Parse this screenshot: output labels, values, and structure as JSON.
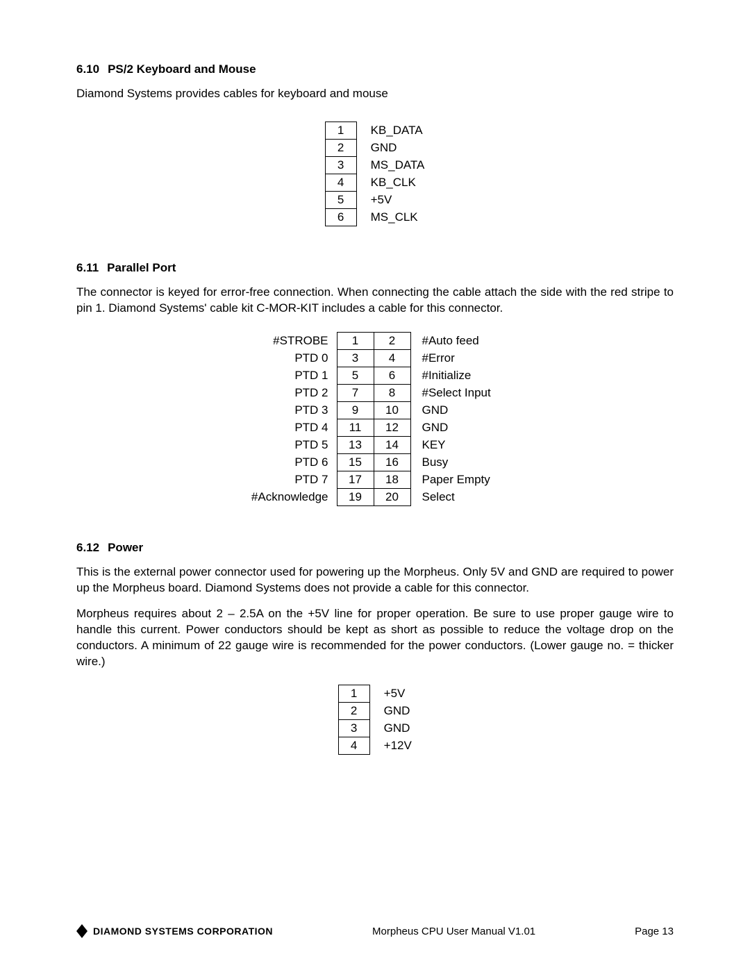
{
  "section1": {
    "number": "6.10",
    "title": "PS/2 Keyboard and Mouse",
    "text": "Diamond Systems provides cables for keyboard and mouse",
    "pins": [
      {
        "n": "1",
        "label": "KB_DATA"
      },
      {
        "n": "2",
        "label": "GND"
      },
      {
        "n": "3",
        "label": "MS_DATA"
      },
      {
        "n": "4",
        "label": "KB_CLK"
      },
      {
        "n": "5",
        "label": "+5V"
      },
      {
        "n": "6",
        "label": "MS_CLK"
      }
    ]
  },
  "section2": {
    "number": "6.11",
    "title": "Parallel Port",
    "text": "The connector is keyed for error-free connection. When connecting the cable attach the side with the red stripe to pin 1. Diamond Systems' cable kit C-MOR-KIT includes a cable for this connector.",
    "rows": [
      {
        "left": "#STROBE",
        "a": "1",
        "b": "2",
        "right": "#Auto feed"
      },
      {
        "left": "PTD 0",
        "a": "3",
        "b": "4",
        "right": "#Error"
      },
      {
        "left": "PTD 1",
        "a": "5",
        "b": "6",
        "right": "#Initialize"
      },
      {
        "left": "PTD 2",
        "a": "7",
        "b": "8",
        "right": "#Select Input"
      },
      {
        "left": "PTD 3",
        "a": "9",
        "b": "10",
        "right": "GND"
      },
      {
        "left": "PTD 4",
        "a": "11",
        "b": "12",
        "right": "GND"
      },
      {
        "left": "PTD 5",
        "a": "13",
        "b": "14",
        "right": "KEY"
      },
      {
        "left": "PTD 6",
        "a": "15",
        "b": "16",
        "right": "Busy"
      },
      {
        "left": "PTD 7",
        "a": "17",
        "b": "18",
        "right": "Paper Empty"
      },
      {
        "left": "#Acknowledge",
        "a": "19",
        "b": "20",
        "right": "Select"
      }
    ]
  },
  "section3": {
    "number": "6.12",
    "title": "Power",
    "text1": "This is the external power connector used for powering up the Morpheus. Only 5V and GND are required to power up the Morpheus board. Diamond Systems does not provide a cable for this connector.",
    "text2": "Morpheus requires about 2 – 2.5A on the +5V line for proper operation. Be sure to use proper gauge wire to handle this current. Power conductors should be kept as short as possible to reduce the voltage drop on the conductors. A minimum of 22 gauge wire is recommended for the power conductors. (Lower gauge no. = thicker wire.)",
    "pins": [
      {
        "n": "1",
        "label": "+5V"
      },
      {
        "n": "2",
        "label": "GND"
      },
      {
        "n": "3",
        "label": "GND"
      },
      {
        "n": "4",
        "label": "+12V"
      }
    ]
  },
  "footer": {
    "company": "DIAMOND SYSTEMS CORPORATION",
    "center": "Morpheus CPU User Manual V1.01",
    "page": "Page 13",
    "logo_color": "#000000"
  }
}
